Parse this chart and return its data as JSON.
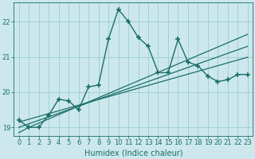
{
  "title": "",
  "xlabel": "Humidex (Indice chaleur)",
  "ylabel": "",
  "bg_color": "#cce8ec",
  "grid_color": "#99cdd4",
  "line_color": "#1a6e6a",
  "x_values": [
    0,
    1,
    2,
    3,
    4,
    5,
    6,
    7,
    8,
    9,
    10,
    11,
    12,
    13,
    14,
    15,
    16,
    17,
    18,
    19,
    20,
    21,
    22,
    23
  ],
  "y_main": [
    19.2,
    19.0,
    19.0,
    19.35,
    19.8,
    19.75,
    19.5,
    20.15,
    20.2,
    21.5,
    22.35,
    22.0,
    21.55,
    21.3,
    20.55,
    20.55,
    21.5,
    20.85,
    20.75,
    20.45,
    20.3,
    20.35,
    20.5,
    20.5
  ],
  "y_reg1": [
    18.85,
    19.0,
    19.12,
    19.24,
    19.36,
    19.48,
    19.6,
    19.72,
    19.84,
    19.96,
    20.08,
    20.2,
    20.32,
    20.44,
    20.56,
    20.68,
    20.8,
    20.92,
    21.04,
    21.16,
    21.28,
    21.4,
    21.52,
    21.64
  ],
  "y_reg2": [
    19.0,
    19.1,
    19.2,
    19.3,
    19.4,
    19.5,
    19.6,
    19.7,
    19.8,
    19.9,
    20.0,
    20.1,
    20.2,
    20.3,
    20.4,
    20.5,
    20.6,
    20.7,
    20.8,
    20.9,
    21.0,
    21.1,
    21.2,
    21.3
  ],
  "y_reg3": [
    19.15,
    19.23,
    19.31,
    19.39,
    19.47,
    19.55,
    19.63,
    19.71,
    19.79,
    19.87,
    19.95,
    20.03,
    20.11,
    20.19,
    20.27,
    20.35,
    20.43,
    20.51,
    20.59,
    20.67,
    20.75,
    20.83,
    20.91,
    20.99
  ],
  "ylim_bottom": 18.75,
  "ylim_top": 22.55,
  "yticks": [
    19,
    20,
    21,
    22
  ],
  "xticks": [
    0,
    1,
    2,
    3,
    4,
    5,
    6,
    7,
    8,
    9,
    10,
    11,
    12,
    13,
    14,
    15,
    16,
    17,
    18,
    19,
    20,
    21,
    22,
    23
  ],
  "marker": "+",
  "markersize": 5,
  "markeredgewidth": 1.2,
  "linewidth": 1.0,
  "reg_linewidth": 0.9,
  "font_size": 6,
  "xlabel_fontsize": 7
}
